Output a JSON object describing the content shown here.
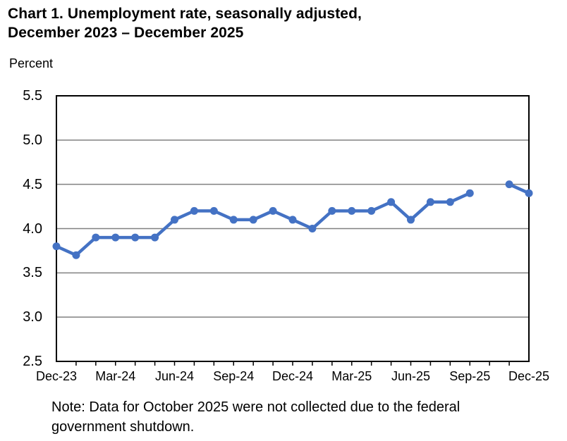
{
  "page": {
    "title_line1": "Chart 1. Unemployment rate, seasonally adjusted,",
    "title_line2": "December 2023 – December 2025",
    "y_axis_unit_label": "Percent",
    "note_line1": "Note: Data for October 2025 were not collected due to the federal",
    "note_line2": "government shutdown."
  },
  "chart_data": {
    "type": "line",
    "title": "Chart 1. Unemployment rate, seasonally adjusted, December 2023 – December 2025",
    "ylabel": "Percent",
    "xlabel": "",
    "x": [
      "Dec-23",
      "Jan-24",
      "Feb-24",
      "Mar-24",
      "Apr-24",
      "May-24",
      "Jun-24",
      "Jul-24",
      "Aug-24",
      "Sep-24",
      "Oct-24",
      "Nov-24",
      "Dec-24",
      "Jan-25",
      "Feb-25",
      "Mar-25",
      "Apr-25",
      "May-25",
      "Jun-25",
      "Jul-25",
      "Aug-25",
      "Sep-25",
      "Oct-25",
      "Nov-25",
      "Dec-25"
    ],
    "series": [
      {
        "name": "Unemployment rate, seasonally adjusted",
        "values": [
          3.8,
          3.7,
          3.9,
          3.9,
          3.9,
          3.9,
          4.1,
          4.2,
          4.2,
          4.1,
          4.1,
          4.2,
          4.1,
          4.0,
          4.2,
          4.2,
          4.2,
          4.3,
          4.1,
          4.3,
          4.3,
          4.4,
          null,
          4.5,
          4.4
        ]
      }
    ],
    "missing_points": [
      "Oct-25"
    ],
    "x_tick_labels": [
      "Dec-23",
      "Mar-24",
      "Jun-24",
      "Sep-24",
      "Dec-24",
      "Mar-25",
      "Jun-25",
      "Sep-25",
      "Dec-25"
    ],
    "x_tick_month_step": 3,
    "y_ticks": [
      2.5,
      3.0,
      3.5,
      4.0,
      4.5,
      5.0,
      5.5
    ],
    "ylim": [
      2.5,
      5.5
    ],
    "grid": "horizontal",
    "legend": "none",
    "note": "Note: Data for October 2025 were not collected due to the federal government shutdown.",
    "colors": {
      "line": "#4472C4",
      "marker": "#4472C4",
      "gridline": "#808080",
      "frame": "#000000",
      "text": "#000000"
    }
  }
}
